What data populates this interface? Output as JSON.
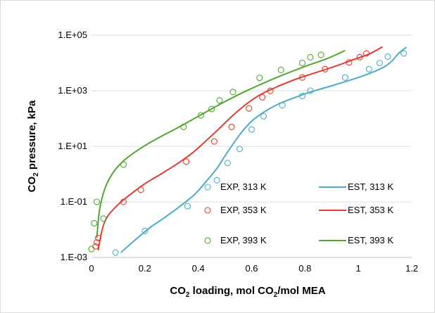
{
  "chart_data": {
    "type": "scatter",
    "x_label_parts": [
      "CO",
      "2",
      " loading, mol CO",
      "2",
      "/mol MEA"
    ],
    "y_label_parts": [
      "CO",
      "2",
      " pressure, kPa"
    ],
    "xlim": [
      0,
      1.2
    ],
    "x_ticks": [
      0,
      0.2,
      0.4,
      0.6,
      0.8,
      1,
      1.2
    ],
    "x_tick_labels": [
      "0",
      "0.2",
      "0.4",
      "0.6",
      "0.8",
      "1",
      "1.2"
    ],
    "y_scale": "log",
    "ylim": [
      0.001,
      100000
    ],
    "y_ticks": [
      0.001,
      0.1,
      10,
      1000,
      100000
    ],
    "y_tick_labels": [
      "1.E-03",
      "1.E-01",
      "1.E+01",
      "1.E+03",
      "1.E+05"
    ],
    "grid": "horizontal",
    "legend_position": "bottom-right",
    "series": [
      {
        "name": "EXP, 313 K",
        "kind": "markers",
        "color": "#4bacc6",
        "x": [
          0.09,
          0.2,
          0.36,
          0.47,
          0.51,
          0.555,
          0.6,
          0.645,
          0.715,
          0.79,
          0.82,
          0.95,
          1.04,
          1.08,
          1.11,
          1.17
        ],
        "y": [
          0.0015,
          0.009,
          0.07,
          0.6,
          2.5,
          8,
          40,
          120,
          300,
          650,
          1000,
          3000,
          6000,
          10000,
          17000,
          22000
        ]
      },
      {
        "name": "EXP, 353 K",
        "kind": "markers",
        "color": "#e03c31",
        "x": [
          0.015,
          0.02,
          0.025,
          0.12,
          0.185,
          0.355,
          0.46,
          0.525,
          0.59,
          0.64,
          0.67,
          0.79,
          0.875,
          0.965,
          1.005,
          1.03
        ],
        "y": [
          0.0025,
          0.0035,
          0.005,
          0.1,
          0.27,
          2.8,
          15,
          50,
          230,
          580,
          990,
          3000,
          6000,
          10500,
          16000,
          22000
        ]
      },
      {
        "name": "EXP, 393 K",
        "kind": "markers",
        "color": "#4ea72e",
        "x": [
          0,
          0.01,
          0.02,
          0.045,
          0.12,
          0.345,
          0.41,
          0.45,
          0.48,
          0.53,
          0.63,
          0.71,
          0.79,
          0.82,
          0.86
        ],
        "y": [
          0.002,
          0.017,
          0.1,
          0.025,
          2.2,
          50,
          130,
          220,
          450,
          900,
          2900,
          5600,
          10000,
          16000,
          19500
        ]
      },
      {
        "name": "EST, 313 K",
        "kind": "line",
        "color": "#4bacc6",
        "x": [
          0.11,
          0.16,
          0.22,
          0.28,
          0.34,
          0.39,
          0.43,
          0.47,
          0.5,
          0.53,
          0.56,
          0.6,
          0.65,
          0.7,
          0.76,
          0.82,
          0.9,
          0.98,
          1.05,
          1.1,
          1.13,
          1.15,
          1.18
        ],
        "y": [
          0.0015,
          0.004,
          0.012,
          0.03,
          0.08,
          0.2,
          0.55,
          1.6,
          4.5,
          12,
          30,
          80,
          180,
          330,
          560,
          900,
          1500,
          2600,
          4500,
          7500,
          13000,
          22000,
          37000
        ]
      },
      {
        "name": "EST, 353 K",
        "kind": "line",
        "color": "#e03c31",
        "x": [
          0.025,
          0.04,
          0.06,
          0.1,
          0.15,
          0.2,
          0.26,
          0.32,
          0.38,
          0.43,
          0.48,
          0.53,
          0.58,
          0.63,
          0.7,
          0.77,
          0.85,
          0.92,
          0.98,
          1.04,
          1.09
        ],
        "y": [
          0.0018,
          0.01,
          0.03,
          0.08,
          0.2,
          0.45,
          1.0,
          2.3,
          6,
          16,
          45,
          130,
          330,
          700,
          1450,
          2700,
          4800,
          8000,
          13000,
          21000,
          38000
        ]
      },
      {
        "name": "EST, 393 K",
        "kind": "line",
        "color": "#4ea72e",
        "x": [
          0.02,
          0.03,
          0.05,
          0.08,
          0.12,
          0.18,
          0.25,
          0.32,
          0.4,
          0.48,
          0.56,
          0.64,
          0.72,
          0.8,
          0.88,
          0.95
        ],
        "y": [
          0.005,
          0.05,
          0.3,
          1.1,
          3,
          8,
          20,
          45,
          120,
          320,
          800,
          1800,
          3800,
          7500,
          14000,
          28000
        ]
      }
    ]
  }
}
